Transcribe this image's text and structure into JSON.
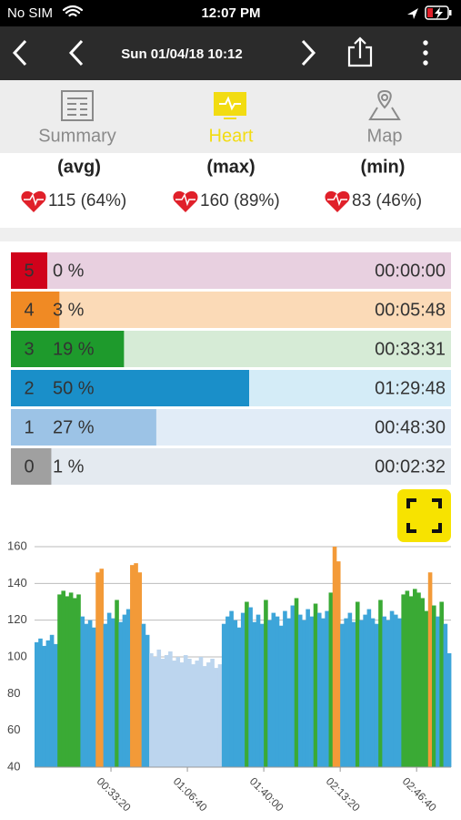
{
  "status_bar": {
    "carrier": "No SIM",
    "time": "12:07 PM"
  },
  "nav_bar": {
    "title": "Sun 01/04/18 10:12"
  },
  "tabs": [
    {
      "label": "Summary",
      "color": "#8a8a8a"
    },
    {
      "label": "Heart",
      "color": "#f2dc12"
    },
    {
      "label": "Map",
      "color": "#8a8a8a"
    }
  ],
  "stats": [
    {
      "label": "(avg)",
      "value": "115 (64%)"
    },
    {
      "label": "(max)",
      "value": "160 (89%)"
    },
    {
      "label": "(min)",
      "value": "83 (46%)"
    }
  ],
  "zones": {
    "labels": [
      "5",
      "4",
      "3",
      "2",
      "1",
      "0"
    ],
    "values": [
      0,
      3,
      19,
      50,
      27,
      1
    ],
    "value_labels": [
      "0 %",
      "3 %",
      "19 %",
      "50 %",
      "27 %",
      "1 %"
    ],
    "times": [
      "00:00:00",
      "00:05:48",
      "00:33:31",
      "01:29:48",
      "00:48:30",
      "00:02:32"
    ],
    "colors": [
      "#d0021b",
      "#f08a24",
      "#1e9a2c",
      "#1a8fc9",
      "#9cc3e6",
      "#a0a0a0"
    ],
    "track_colors": [
      "#e8d0e0",
      "#fbdab7",
      "#d6ebd6",
      "#d4ecf7",
      "#e1ecf7",
      "#e4eaf0"
    ],
    "xlim": [
      0,
      100
    ]
  },
  "heart_chart": {
    "type": "area",
    "grid": true,
    "xlim": [
      0,
      10900
    ],
    "ylim": [
      40,
      160
    ],
    "yticks": [
      40,
      60,
      80,
      100,
      120,
      140,
      160
    ],
    "xticks": [
      {
        "value": 2000,
        "label": "00:33:20"
      },
      {
        "value": 4000,
        "label": "01:06:40"
      },
      {
        "value": 6000,
        "label": "01:40:00"
      },
      {
        "value": 8000,
        "label": "02:13:20"
      },
      {
        "value": 10000,
        "label": "02:46:40"
      }
    ],
    "x": [
      0,
      100,
      200,
      300,
      400,
      500,
      600,
      700,
      800,
      900,
      1000,
      1100,
      1200,
      1300,
      1400,
      1500,
      1600,
      1700,
      1800,
      1900,
      2000,
      2100,
      2200,
      2300,
      2400,
      2500,
      2600,
      2700,
      2800,
      2900,
      3000,
      3100,
      3200,
      3300,
      3400,
      3500,
      3600,
      3700,
      3800,
      3900,
      4000,
      4100,
      4200,
      4300,
      4400,
      4500,
      4600,
      4700,
      4800,
      4900,
      5000,
      5100,
      5200,
      5300,
      5400,
      5500,
      5600,
      5700,
      5800,
      5900,
      6000,
      6100,
      6200,
      6300,
      6400,
      6500,
      6600,
      6700,
      6800,
      6900,
      7000,
      7100,
      7200,
      7300,
      7400,
      7500,
      7600,
      7700,
      7800,
      7900,
      8000,
      8100,
      8200,
      8300,
      8400,
      8500,
      8600,
      8700,
      8800,
      8900,
      9000,
      9100,
      9200,
      9300,
      9400,
      9500,
      9600,
      9700,
      9800,
      9900,
      10000,
      10100,
      10200,
      10300,
      10400,
      10500,
      10600,
      10700,
      10800
    ],
    "values": [
      108,
      110,
      106,
      109,
      112,
      107,
      134,
      136,
      133,
      135,
      132,
      134,
      122,
      118,
      120,
      116,
      146,
      148,
      118,
      124,
      121,
      131,
      119,
      123,
      126,
      150,
      151,
      146,
      118,
      112,
      102,
      100,
      104,
      99,
      101,
      103,
      98,
      100,
      97,
      101,
      99,
      96,
      98,
      100,
      95,
      97,
      99,
      94,
      96,
      118,
      122,
      125,
      120,
      116,
      124,
      130,
      127,
      119,
      123,
      118,
      131,
      120,
      124,
      122,
      117,
      125,
      121,
      128,
      132,
      123,
      120,
      126,
      122,
      129,
      124,
      121,
      125,
      135,
      160,
      152,
      118,
      121,
      124,
      119,
      130,
      120,
      123,
      126,
      121,
      118,
      131,
      122,
      120,
      125,
      123,
      121,
      134,
      136,
      133,
      137,
      135,
      132,
      125,
      146,
      128,
      122,
      130,
      118,
      102
    ],
    "colors": [
      "#3da5d9",
      "#3da5d9",
      "#3da5d9",
      "#3da5d9",
      "#3da5d9",
      "#3da5d9",
      "#3aaa35",
      "#3aaa35",
      "#3aaa35",
      "#3aaa35",
      "#3aaa35",
      "#3aaa35",
      "#3da5d9",
      "#3da5d9",
      "#3da5d9",
      "#3da5d9",
      "#f39a38",
      "#f39a38",
      "#3da5d9",
      "#3da5d9",
      "#3da5d9",
      "#3aaa35",
      "#3da5d9",
      "#3da5d9",
      "#3da5d9",
      "#f39a38",
      "#f39a38",
      "#f39a38",
      "#3da5d9",
      "#3da5d9",
      "#bcd5ee",
      "#bcd5ee",
      "#bcd5ee",
      "#bcd5ee",
      "#bcd5ee",
      "#bcd5ee",
      "#bcd5ee",
      "#bcd5ee",
      "#bcd5ee",
      "#bcd5ee",
      "#bcd5ee",
      "#bcd5ee",
      "#bcd5ee",
      "#bcd5ee",
      "#bcd5ee",
      "#bcd5ee",
      "#bcd5ee",
      "#bcd5ee",
      "#bcd5ee",
      "#3da5d9",
      "#3da5d9",
      "#3da5d9",
      "#3da5d9",
      "#3da5d9",
      "#3da5d9",
      "#3aaa35",
      "#3da5d9",
      "#3da5d9",
      "#3da5d9",
      "#3da5d9",
      "#3aaa35",
      "#3da5d9",
      "#3da5d9",
      "#3da5d9",
      "#3da5d9",
      "#3da5d9",
      "#3da5d9",
      "#3da5d9",
      "#3aaa35",
      "#3da5d9",
      "#3da5d9",
      "#3da5d9",
      "#3da5d9",
      "#3aaa35",
      "#3da5d9",
      "#3da5d9",
      "#3da5d9",
      "#3aaa35",
      "#f39a38",
      "#f39a38",
      "#3da5d9",
      "#3da5d9",
      "#3da5d9",
      "#3da5d9",
      "#3aaa35",
      "#3da5d9",
      "#3da5d9",
      "#3da5d9",
      "#3da5d9",
      "#3da5d9",
      "#3aaa35",
      "#3da5d9",
      "#3da5d9",
      "#3da5d9",
      "#3da5d9",
      "#3da5d9",
      "#3aaa35",
      "#3aaa35",
      "#3aaa35",
      "#3aaa35",
      "#3aaa35",
      "#3aaa35",
      "#3aaa35",
      "#f39a38",
      "#3aaa35",
      "#3da5d9",
      "#3aaa35",
      "#3da5d9",
      "#3da5d9"
    ]
  }
}
